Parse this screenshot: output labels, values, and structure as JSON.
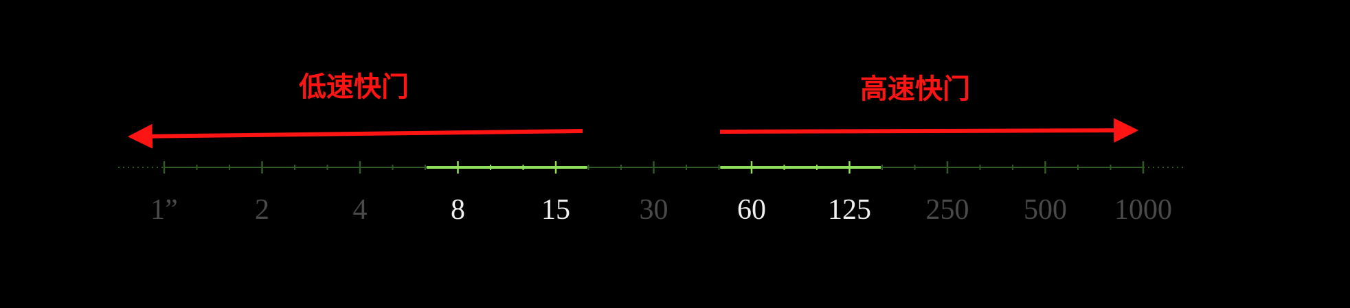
{
  "annotations": {
    "slow_shutter": "低速快门",
    "fast_shutter": "高速快门"
  },
  "scale": {
    "labels": [
      "1”",
      "2",
      "4",
      "8",
      "15",
      "30",
      "60",
      "125",
      "250",
      "500",
      "1000"
    ],
    "highlighted_labels": [
      "8",
      "15",
      "60",
      "125"
    ],
    "highlighted_ranges": [
      [
        "4",
        "30"
      ],
      [
        "30",
        "250"
      ]
    ]
  },
  "colors": {
    "background": "#000000",
    "annotation": "#ff1414",
    "axis": "#2f5a24",
    "axis_highlight": "#8ee05c",
    "label_dim": "#4a4a4a",
    "label_bright": "#f0f0f0"
  }
}
